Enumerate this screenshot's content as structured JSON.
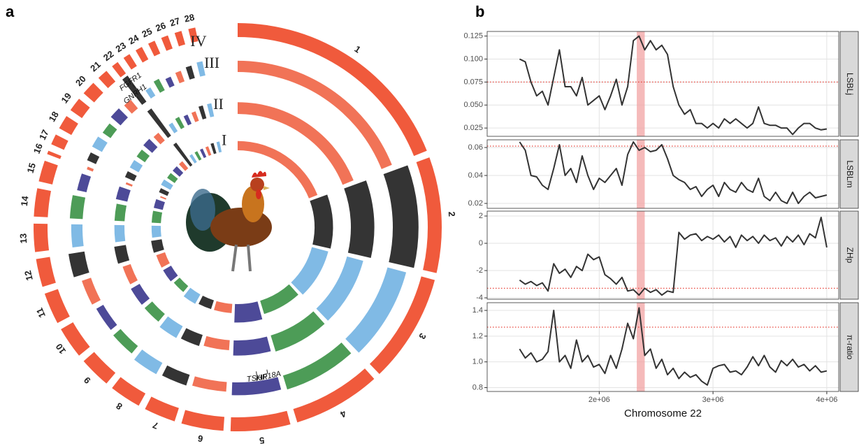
{
  "chart_data": [
    {
      "type": "circos",
      "panel_label": "a",
      "chromosomes": [
        "1",
        "2",
        "3",
        "4",
        "5",
        "6",
        "7",
        "8",
        "9",
        "10",
        "11",
        "12",
        "13",
        "14",
        "15",
        "16",
        "17",
        "18",
        "19",
        "20",
        "21",
        "22",
        "23",
        "24",
        "25",
        "26",
        "27",
        "28"
      ],
      "lengths": [
        68,
        33,
        31,
        25,
        17,
        12,
        9,
        9,
        9,
        9,
        9,
        8,
        8,
        8,
        6,
        1,
        3,
        4,
        4,
        4,
        3,
        2,
        2,
        2,
        2,
        2,
        2,
        2
      ],
      "ideogram_label": "IV",
      "ideogram_color": "#f05a3c",
      "palette": [
        "#ef5a3a",
        "#111111",
        "#6aaee0",
        "#2e8b3a",
        "#2e2a86"
      ],
      "tracks": [
        {
          "label": "III",
          "values": [
            0.35,
            0.8,
            0.6,
            0.45,
            0.4,
            0.3,
            0.35,
            0.4,
            0.3,
            0.25,
            0.3,
            0.5,
            0.35,
            0.4,
            0.3,
            0.2,
            0.3,
            0.35,
            0.3,
            0.4,
            0.35,
            1.0,
            0.3,
            0.4,
            0.3,
            0.35,
            0.4,
            0.45
          ]
        },
        {
          "label": "II",
          "values": [
            0.35,
            0.7,
            0.5,
            0.5,
            0.45,
            0.3,
            0.35,
            0.4,
            0.3,
            0.3,
            0.25,
            0.35,
            0.3,
            0.3,
            0.35,
            0.2,
            0.3,
            0.3,
            0.3,
            0.35,
            0.3,
            1.0,
            0.3,
            0.35,
            0.3,
            0.3,
            0.4,
            0.4
          ]
        },
        {
          "label": "I",
          "values": [
            0.3,
            0.6,
            0.55,
            0.45,
            0.6,
            0.3,
            0.3,
            0.35,
            0.25,
            0.3,
            0.3,
            0.35,
            0.3,
            0.3,
            0.3,
            0.2,
            0.3,
            0.35,
            0.3,
            0.3,
            0.3,
            0.9,
            0.3,
            0.3,
            0.3,
            0.3,
            0.35,
            0.35
          ]
        }
      ],
      "annotations": [
        {
          "label": "GNRH1",
          "chrom": 21,
          "position": 0.2
        },
        {
          "label": "FGFR1",
          "chrom": 21,
          "position": 0.8
        },
        {
          "label": "TSHR",
          "chrom": 4,
          "position": 0.45
        },
        {
          "label": "KIF18A",
          "chrom": 4,
          "position": 0.2
        }
      ]
    },
    {
      "type": "facet_line",
      "panel_label": "b",
      "xlabel": "Chromosome 22",
      "color": "#333333",
      "threshold_color": "#e8433a",
      "highlight": [
        2330000,
        2400000
      ],
      "highlight_color": "#f2a3a3",
      "xlim": [
        1015000,
        4105000
      ],
      "xticks": [
        {
          "value": 2000000,
          "label": "2e+06"
        },
        {
          "value": 3000000,
          "label": "3e+06"
        },
        {
          "value": 4000000,
          "label": "4e+06"
        }
      ],
      "grid": true,
      "x": [
        1300000,
        1350000,
        1400000,
        1450000,
        1500000,
        1550000,
        1600000,
        1650000,
        1700000,
        1750000,
        1800000,
        1850000,
        1900000,
        1950000,
        2000000,
        2050000,
        2100000,
        2150000,
        2200000,
        2250000,
        2300000,
        2350000,
        2400000,
        2450000,
        2500000,
        2550000,
        2600000,
        2650000,
        2700000,
        2750000,
        2800000,
        2850000,
        2900000,
        2950000,
        3000000,
        3050000,
        3100000,
        3150000,
        3200000,
        3250000,
        3300000,
        3350000,
        3400000,
        3450000,
        3500000,
        3550000,
        3600000,
        3650000,
        3700000,
        3750000,
        3800000,
        3850000,
        3900000,
        3950000,
        4000000
      ],
      "facets": [
        {
          "strip": "LSBLj",
          "ylim": [
            0.016,
            0.13
          ],
          "threshold": 0.075,
          "yticks": [
            0.025,
            {
              "value": 0.05,
              "label": "0.050"
            },
            0.075,
            {
              "value": 0.1,
              "label": "0.100"
            },
            0.125
          ],
          "values": [
            0.1,
            0.097,
            0.075,
            0.06,
            0.065,
            0.05,
            0.08,
            0.11,
            0.07,
            0.07,
            0.06,
            0.08,
            0.05,
            0.055,
            0.06,
            0.045,
            0.06,
            0.078,
            0.05,
            0.07,
            0.12,
            0.125,
            0.11,
            0.12,
            0.11,
            0.115,
            0.105,
            0.07,
            0.05,
            0.04,
            0.045,
            0.03,
            0.03,
            0.025,
            0.03,
            0.025,
            0.035,
            0.03,
            0.035,
            0.03,
            0.025,
            0.03,
            0.048,
            0.03,
            0.028,
            0.028,
            0.025,
            0.025,
            0.018,
            0.025,
            0.03,
            0.03,
            0.025,
            0.023,
            0.024
          ]
        },
        {
          "strip": "LSBLm",
          "ylim": [
            0.0165,
            0.0655
          ],
          "threshold": 0.061,
          "yticks": [
            0.02,
            0.04,
            0.06
          ],
          "values": [
            0.064,
            0.058,
            0.04,
            0.039,
            0.033,
            0.03,
            0.045,
            0.062,
            0.04,
            0.045,
            0.035,
            0.054,
            0.04,
            0.03,
            0.038,
            0.035,
            0.04,
            0.045,
            0.033,
            0.055,
            0.064,
            0.058,
            0.06,
            0.057,
            0.058,
            0.062,
            0.052,
            0.04,
            0.037,
            0.035,
            0.03,
            0.032,
            0.025,
            0.03,
            0.033,
            0.025,
            0.035,
            0.03,
            0.028,
            0.035,
            0.03,
            0.028,
            0.038,
            0.025,
            0.022,
            0.028,
            0.022,
            0.02,
            0.028,
            0.02,
            0.025,
            0.028,
            0.024,
            0.025,
            0.026
          ]
        },
        {
          "strip": "ZHp",
          "ylim": [
            -4.1,
            2.36
          ],
          "threshold": -3.3,
          "yticks": [
            -4,
            -2,
            0,
            2
          ],
          "values": [
            -2.7,
            -3.0,
            -2.8,
            -3.1,
            -2.9,
            -3.5,
            -1.5,
            -2.2,
            -1.9,
            -2.5,
            -1.7,
            -2.0,
            -0.8,
            -1.2,
            -1.0,
            -2.3,
            -2.6,
            -3.0,
            -2.5,
            -3.5,
            -3.4,
            -3.8,
            -3.3,
            -3.6,
            -3.4,
            -3.8,
            -3.5,
            -3.6,
            0.8,
            0.3,
            0.6,
            0.7,
            0.2,
            0.5,
            0.3,
            0.6,
            0.1,
            0.5,
            -0.3,
            0.6,
            0.2,
            0.5,
            0,
            0.6,
            0.2,
            0.4,
            -0.2,
            0.5,
            0.1,
            0.6,
            -0.1,
            0.7,
            0.4,
            1.9,
            -0.3
          ]
        },
        {
          "strip": "π-ratio",
          "ylim": [
            0.77,
            1.46
          ],
          "threshold": 1.27,
          "yticks": [
            0.8,
            {
              "value": 1,
              "label": "1.0"
            },
            1.2,
            1.4
          ],
          "values": [
            1.1,
            1.03,
            1.07,
            1.0,
            1.02,
            1.08,
            1.4,
            1.0,
            1.05,
            0.95,
            1.17,
            1.0,
            1.05,
            0.96,
            0.98,
            0.91,
            1.05,
            0.95,
            1.1,
            1.3,
            1.18,
            1.42,
            1.05,
            1.1,
            0.95,
            1.02,
            0.9,
            0.95,
            0.87,
            0.92,
            0.88,
            0.9,
            0.85,
            0.82,
            0.95,
            0.97,
            0.98,
            0.92,
            0.93,
            0.9,
            0.96,
            1.04,
            0.97,
            1.05,
            0.96,
            0.92,
            1.01,
            0.97,
            1.02,
            0.96,
            0.98,
            0.93,
            0.97,
            0.92,
            0.93
          ]
        }
      ]
    }
  ]
}
